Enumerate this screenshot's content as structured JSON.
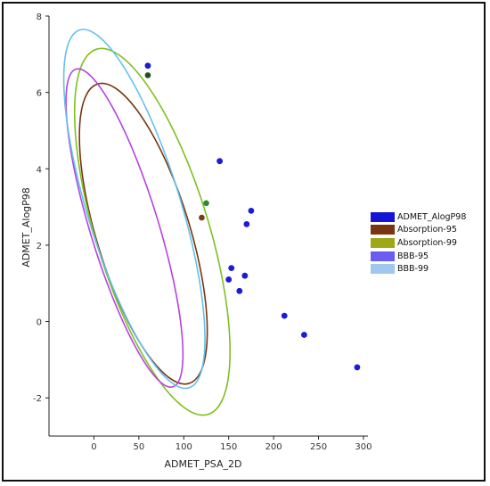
{
  "chart_data": {
    "type": "scatter",
    "title": "",
    "xlabel": "ADMET_PSA_2D",
    "ylabel": "ADMET_AlogP98",
    "xlim": [
      -50,
      305
    ],
    "ylim": [
      -3,
      8
    ],
    "xticks": [
      0,
      50,
      100,
      150,
      200,
      250,
      300
    ],
    "yticks": [
      -2,
      0,
      2,
      4,
      6,
      8
    ],
    "grid": false,
    "legend_position": "right",
    "series": [
      {
        "name": "ADMET_AlogP98",
        "color": "#1b1bd8",
        "points": [
          [
            60,
            6.7
          ],
          [
            140,
            4.2
          ],
          [
            175,
            2.9
          ],
          [
            170,
            2.55
          ],
          [
            153,
            1.4
          ],
          [
            150,
            1.1
          ],
          [
            168,
            1.2
          ],
          [
            162,
            0.8
          ],
          [
            212,
            0.15
          ],
          [
            234,
            -0.35
          ],
          [
            293,
            -1.2
          ]
        ]
      }
    ],
    "highlighted_points": [
      {
        "x": 60,
        "y": 6.45,
        "color": "#1f4f1f"
      },
      {
        "x": 125,
        "y": 3.1,
        "color": "#2c8a2c"
      },
      {
        "x": 120,
        "y": 2.72,
        "color": "#7a3a1a"
      }
    ],
    "ellipses": [
      {
        "name": "Absorption-95",
        "color": "#7a3410",
        "cx": 55,
        "cy": 2.3,
        "rx": 52,
        "ry": 4.1,
        "angle_deg": -17
      },
      {
        "name": "Absorption-99",
        "color": "#7fbf1f",
        "cx": 65,
        "cy": 2.35,
        "rx": 63,
        "ry": 5.0,
        "angle_deg": -17
      },
      {
        "name": "BBB-95",
        "color": "#b642e0",
        "cx": 34,
        "cy": 2.45,
        "rx": 38,
        "ry": 4.35,
        "angle_deg": -17
      },
      {
        "name": "BBB-99",
        "color": "#62c1ec",
        "cx": 45,
        "cy": 2.95,
        "rx": 52,
        "ry": 4.9,
        "angle_deg": -17
      }
    ],
    "legend": [
      {
        "label": "ADMET_AlogP98",
        "color": "#1414d4"
      },
      {
        "label": "Absorption-95",
        "color": "#7a3410"
      },
      {
        "label": "Absorption-99",
        "color": "#9ea814"
      },
      {
        "label": "BBB-95",
        "color": "#6a5cf0"
      },
      {
        "label": "BBB-99",
        "color": "#9ec8f0"
      }
    ]
  }
}
